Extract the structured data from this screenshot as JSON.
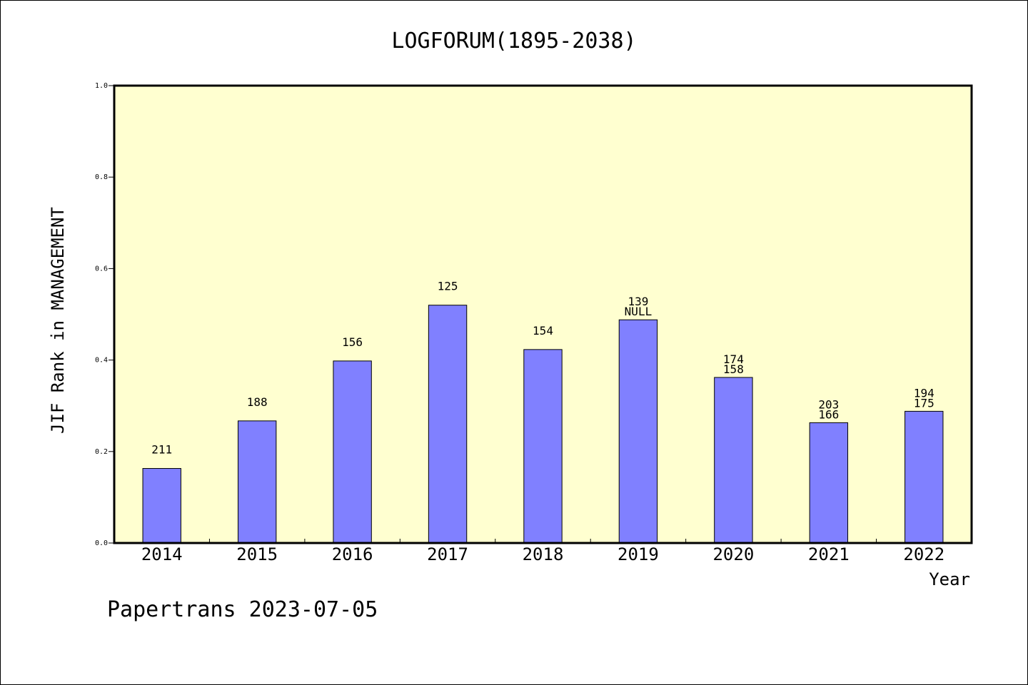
{
  "chart_data": {
    "type": "bar",
    "title": "LOGFORUM(1895-2038)",
    "xlabel": "Year",
    "ylabel": "JIF Rank in MANAGEMENT",
    "ylim": [
      0.0,
      1.0
    ],
    "yticks": [
      "0.0",
      "0.2",
      "0.4",
      "0.6",
      "0.8",
      "1.0"
    ],
    "grid": false,
    "categories": [
      "2014",
      "2015",
      "2016",
      "2017",
      "2018",
      "2019",
      "2020",
      "2021",
      "2022"
    ],
    "values": [
      0.163,
      0.267,
      0.398,
      0.52,
      0.423,
      0.488,
      0.362,
      0.263,
      0.288
    ],
    "bar_labels": [
      [
        "211"
      ],
      [
        "188"
      ],
      [
        "156"
      ],
      [
        "125"
      ],
      [
        "154"
      ],
      [
        "139",
        "NULL"
      ],
      [
        "174",
        "158"
      ],
      [
        "203",
        "166"
      ],
      [
        "194",
        "175"
      ]
    ],
    "colors": {
      "plot_background": "#ffffd0",
      "bar_fill": "#8080ff",
      "bar_stroke": "#000000"
    }
  },
  "footer": {
    "text": "Papertrans 2023-07-05"
  }
}
